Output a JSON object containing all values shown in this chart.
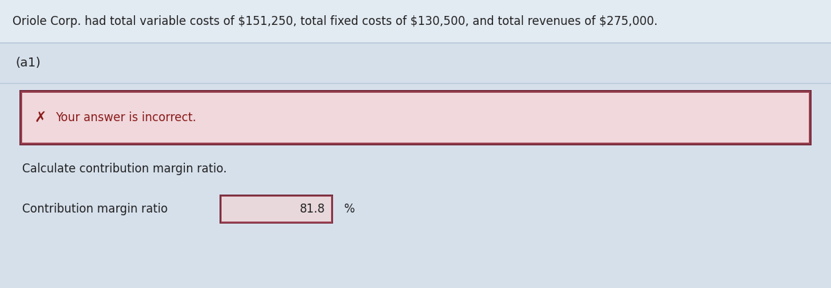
{
  "header_text": "Oriole Corp. had total variable costs of $151,250, total fixed costs of $130,500, and total revenues of $275,000.",
  "section_label": "(a1)",
  "error_message": "Your answer is incorrect.",
  "instruction_text": "Calculate contribution margin ratio.",
  "field_label": "Contribution margin ratio",
  "field_value": "81.8",
  "percent_sign": "%",
  "page_bg": "#d6e0eb",
  "header_bg": "#e2eaf2",
  "section_bg": "#d6e0eb",
  "content_bg": "#d6e0eb",
  "error_outer_border": "#7a3040",
  "error_inner_border": "#9a4050",
  "error_fill": "#f0d8dc",
  "error_text_color": "#8b1a1a",
  "input_outer_border": "#7a3040",
  "input_inner_border": "#9a4050",
  "input_fill": "#e8d8dc",
  "header_line_color": "#b8c8d8",
  "section_line_color": "#b8c8d8",
  "header_text_color": "#222222",
  "body_text_color": "#222222",
  "header_fontsize": 12,
  "section_fontsize": 13,
  "error_fontsize": 12,
  "instruction_fontsize": 12,
  "field_fontsize": 12,
  "value_fontsize": 12
}
